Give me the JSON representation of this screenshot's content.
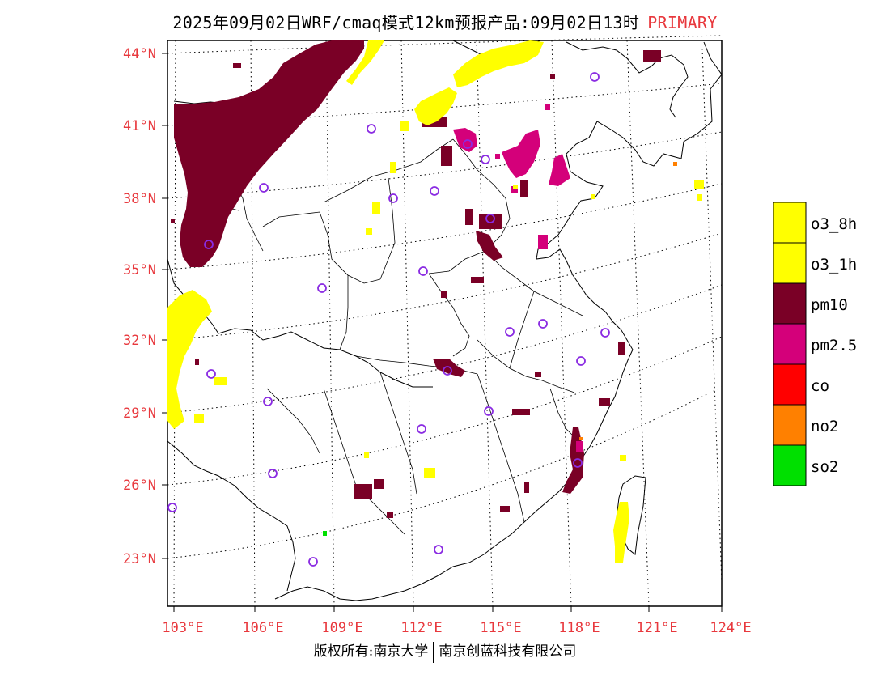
{
  "title": {
    "main": "2025年09月02日WRF/cmaq模式12km预报产品:09月02日13时",
    "tag": "PRIMARY"
  },
  "colors": {
    "label_red": "#e8383d",
    "o3": "#ffff00",
    "pm10": "#7a0026",
    "pm25": "#d4007a",
    "co": "#ff0000",
    "no2": "#ff8000",
    "so2": "#00e000",
    "station": "#8a2be2"
  },
  "map": {
    "lon_range": [
      103,
      124
    ],
    "lat_range": [
      21,
      44.5
    ],
    "lat_labels": [
      "44°N",
      "41°N",
      "38°N",
      "35°N",
      "32°N",
      "29°N",
      "26°N",
      "23°N"
    ],
    "lon_labels": [
      "103°E",
      "106°E",
      "109°E",
      "112°E",
      "115°E",
      "118°E",
      "121°E",
      "124°E"
    ]
  },
  "legend": [
    {
      "label": "o3_8h",
      "color": "#ffff00"
    },
    {
      "label": "o3_1h",
      "color": "#ffff00"
    },
    {
      "label": "pm10",
      "color": "#7a0026"
    },
    {
      "label": "pm2.5",
      "color": "#d4007a"
    },
    {
      "label": "co",
      "color": "#ff0000"
    },
    {
      "label": "no2",
      "color": "#ff8000"
    },
    {
      "label": "so2",
      "color": "#00e000"
    }
  ],
  "footer": {
    "left": "版权所有:南京大学",
    "right": "南京创蓝科技有限公司"
  }
}
